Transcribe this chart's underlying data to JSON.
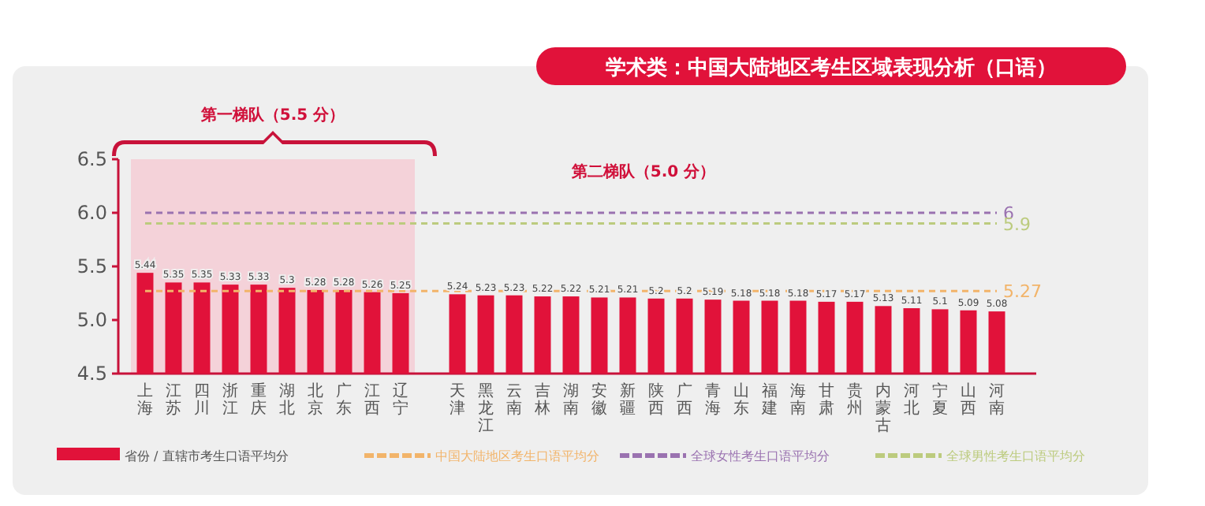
{
  "chart_data": {
    "type": "bar",
    "title": "学术类：中国大陆地区考生区域表现分析（口语）",
    "categories": [
      "上海",
      "江苏",
      "四川",
      "浙江",
      "重庆",
      "湖北",
      "北京",
      "广东",
      "江西",
      "辽宁",
      null,
      "天津",
      "黑龙江",
      "云南",
      "吉林",
      "湖南",
      "安徽",
      "新疆",
      "陕西",
      "广西",
      "青海",
      "山东",
      "福建",
      "海南",
      "甘肃",
      "贵州",
      "内蒙古",
      "河北",
      "宁夏",
      "山西",
      "河南"
    ],
    "series": [
      {
        "name": "省份 / 直辖市考生口语平均分",
        "color": "#e1123a",
        "values": [
          5.44,
          5.35,
          5.35,
          5.33,
          5.33,
          5.3,
          5.28,
          5.28,
          5.26,
          5.25,
          null,
          5.24,
          5.23,
          5.23,
          5.22,
          5.22,
          5.21,
          5.21,
          5.2,
          5.2,
          5.19,
          5.18,
          5.18,
          5.18,
          5.17,
          5.17,
          5.13,
          5.11,
          5.1,
          5.09,
          5.08
        ]
      },
      {
        "type": "line",
        "name": "中国大陆地区考生口语平均分",
        "color": "#f2b46a",
        "line_style": "dashed",
        "values": [
          5.27,
          5.27,
          5.27,
          5.27,
          5.27,
          5.27,
          5.27,
          5.27,
          5.27,
          5.27,
          5.27,
          5.27,
          5.27,
          5.27,
          5.27,
          5.27,
          5.27,
          5.27,
          5.27,
          5.27,
          5.27,
          5.27,
          5.27,
          5.27,
          5.27,
          5.27,
          5.27,
          5.27,
          5.27,
          5.27,
          5.27
        ],
        "value_labels": [
          null,
          null,
          null,
          null,
          null,
          null,
          null,
          null,
          null,
          null,
          null,
          null,
          null,
          null,
          null,
          null,
          null,
          null,
          null,
          null,
          null,
          null,
          null,
          null,
          null,
          null,
          null,
          null,
          null,
          null,
          "5.27"
        ]
      },
      {
        "type": "line",
        "name": "全球女性考生口语平均分",
        "color": "#9a72b0",
        "line_style": "dashed",
        "values": [
          6,
          6,
          6,
          6,
          6,
          6,
          6,
          6,
          6,
          6,
          6,
          6,
          6,
          6,
          6,
          6,
          6,
          6,
          6,
          6,
          6,
          6,
          6,
          6,
          6,
          6,
          6,
          6,
          6,
          6,
          6
        ],
        "value_labels": [
          null,
          null,
          null,
          null,
          null,
          null,
          null,
          null,
          null,
          null,
          null,
          null,
          null,
          null,
          null,
          null,
          null,
          null,
          null,
          null,
          null,
          null,
          null,
          null,
          null,
          null,
          null,
          null,
          null,
          null,
          "6"
        ]
      },
      {
        "type": "line",
        "name": "全球男性考生口语平均分",
        "color": "#bccb7e",
        "line_style": "dashed",
        "values": [
          5.9,
          5.9,
          5.9,
          5.9,
          5.9,
          5.9,
          5.9,
          5.9,
          5.9,
          5.9,
          5.9,
          5.9,
          5.9,
          5.9,
          5.9,
          5.9,
          5.9,
          5.9,
          5.9,
          5.9,
          5.9,
          5.9,
          5.9,
          5.9,
          5.9,
          5.9,
          5.9,
          5.9,
          5.9,
          5.9,
          5.9
        ],
        "value_labels": [
          null,
          null,
          null,
          null,
          null,
          null,
          null,
          null,
          null,
          null,
          null,
          null,
          null,
          null,
          null,
          null,
          null,
          null,
          null,
          null,
          null,
          null,
          null,
          null,
          null,
          null,
          null,
          null,
          null,
          null,
          "5.9"
        ]
      }
    ],
    "ylim": [
      4.5,
      6.5
    ],
    "yticks": [
      {
        "value": 4.5,
        "label": "4.5"
      },
      {
        "value": 5.0,
        "label": "5.0"
      },
      {
        "value": 5.5,
        "label": "5.5"
      },
      {
        "value": 6.0,
        "label": "6.0"
      },
      {
        "value": 6.5,
        "label": "6.5"
      }
    ],
    "data_labels": true,
    "bands": [
      {
        "axis": "x",
        "from": "上海",
        "to": "辽宁",
        "label": "第一梯队（5.5 分）",
        "color": "#f4ccd5"
      }
    ],
    "annotations": [
      "第二梯队（5.0 分）"
    ],
    "legend": "bottom"
  }
}
